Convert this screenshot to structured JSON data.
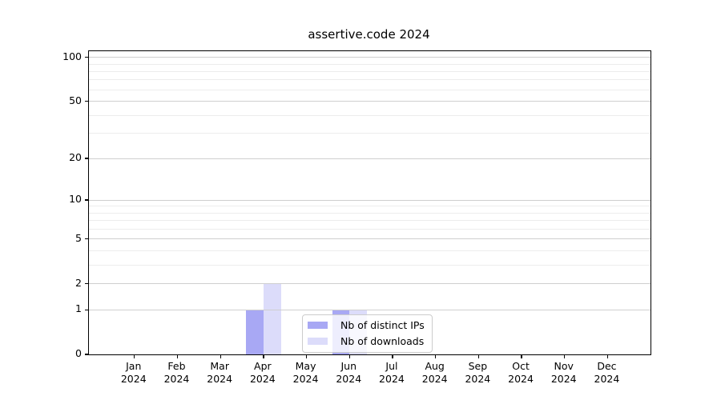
{
  "chart_data": {
    "type": "bar",
    "title": "assertive.code 2024",
    "months": [
      "Jan",
      "Feb",
      "Mar",
      "Apr",
      "May",
      "Jun",
      "Jul",
      "Aug",
      "Sep",
      "Oct",
      "Nov",
      "Dec"
    ],
    "year": "2024",
    "series": [
      {
        "name": "Nb of distinct IPs",
        "color": "#a8a8f4",
        "values": [
          0,
          0,
          0,
          1,
          0,
          1,
          0,
          0,
          0,
          0,
          0,
          0
        ]
      },
      {
        "name": "Nb of downloads",
        "color": "#dcdcfa",
        "values": [
          0,
          0,
          0,
          2,
          0,
          1,
          0,
          0,
          0,
          0,
          0,
          0
        ]
      }
    ],
    "xlabel": "",
    "ylabel": "",
    "yscale": "log1p",
    "ylim": [
      0,
      110
    ],
    "y_tick_values": [
      0,
      1,
      2,
      5,
      10,
      20,
      50,
      100
    ],
    "y_minor_gridlines": [
      3,
      4,
      6,
      7,
      8,
      9,
      30,
      40,
      60,
      70,
      80,
      90
    ],
    "grid": "horizontal",
    "legend_position": "lower center"
  },
  "layout_colors": {
    "axis": "#000000",
    "major_grid": "#cfcfcf",
    "minor_grid": "#ececec",
    "legend_border": "#cccccc"
  }
}
